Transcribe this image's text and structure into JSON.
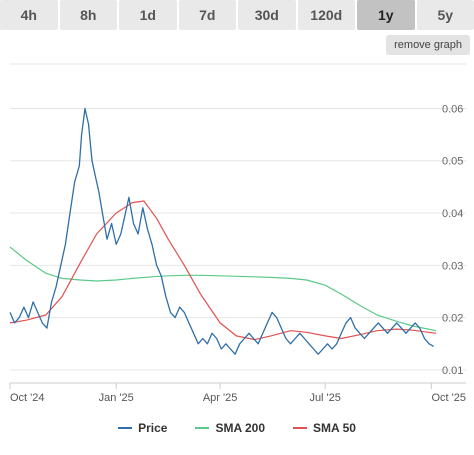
{
  "tabs": [
    {
      "label": "4h",
      "active": false
    },
    {
      "label": "8h",
      "active": false
    },
    {
      "label": "1d",
      "active": false
    },
    {
      "label": "7d",
      "active": false
    },
    {
      "label": "30d",
      "active": false
    },
    {
      "label": "120d",
      "active": false
    },
    {
      "label": "1y",
      "active": true
    },
    {
      "label": "5y",
      "active": false
    }
  ],
  "remove_graph_label": "remove graph",
  "chart_data": {
    "type": "line",
    "x_tick_labels": [
      "Oct '24",
      "Jan '25",
      "Apr '25",
      "Jul '25",
      "Oct '25"
    ],
    "y_tick_labels": [
      "0.01",
      "0.02",
      "0.03",
      "0.04",
      "0.05",
      "0.06"
    ],
    "y_ticks": [
      0.01,
      0.02,
      0.03,
      0.04,
      0.05,
      0.06
    ],
    "ylim": [
      0.0075,
      0.0685
    ],
    "xlim": [
      "2024-10-01",
      "2025-10-05"
    ],
    "grid": true,
    "legend_position": "bottom",
    "series": [
      {
        "name": "Price",
        "color": "#2f6fa7",
        "points": [
          [
            "2024-10-01",
            0.021
          ],
          [
            "2024-10-05",
            0.019
          ],
          [
            "2024-10-09",
            0.02
          ],
          [
            "2024-10-13",
            0.022
          ],
          [
            "2024-10-17",
            0.02
          ],
          [
            "2024-10-21",
            0.023
          ],
          [
            "2024-10-25",
            0.021
          ],
          [
            "2024-10-29",
            0.019
          ],
          [
            "2024-11-02",
            0.018
          ],
          [
            "2024-11-06",
            0.023
          ],
          [
            "2024-11-10",
            0.026
          ],
          [
            "2024-11-14",
            0.03
          ],
          [
            "2024-11-18",
            0.034
          ],
          [
            "2024-11-22",
            0.04
          ],
          [
            "2024-11-26",
            0.046
          ],
          [
            "2024-11-30",
            0.049
          ],
          [
            "2024-12-02",
            0.055
          ],
          [
            "2024-12-05",
            0.06
          ],
          [
            "2024-12-08",
            0.057
          ],
          [
            "2024-12-11",
            0.05
          ],
          [
            "2024-12-14",
            0.047
          ],
          [
            "2024-12-17",
            0.044
          ],
          [
            "2024-12-20",
            0.04
          ],
          [
            "2024-12-24",
            0.035
          ],
          [
            "2024-12-28",
            0.038
          ],
          [
            "2025-01-01",
            0.034
          ],
          [
            "2025-01-05",
            0.036
          ],
          [
            "2025-01-08",
            0.039
          ],
          [
            "2025-01-12",
            0.043
          ],
          [
            "2025-01-16",
            0.038
          ],
          [
            "2025-01-20",
            0.036
          ],
          [
            "2025-01-24",
            0.041
          ],
          [
            "2025-01-28",
            0.037
          ],
          [
            "2025-02-01",
            0.034
          ],
          [
            "2025-02-05",
            0.03
          ],
          [
            "2025-02-09",
            0.028
          ],
          [
            "2025-02-13",
            0.024
          ],
          [
            "2025-02-17",
            0.021
          ],
          [
            "2025-02-21",
            0.02
          ],
          [
            "2025-02-25",
            0.022
          ],
          [
            "2025-03-01",
            0.021
          ],
          [
            "2025-03-05",
            0.019
          ],
          [
            "2025-03-09",
            0.017
          ],
          [
            "2025-03-13",
            0.015
          ],
          [
            "2025-03-17",
            0.016
          ],
          [
            "2025-03-21",
            0.015
          ],
          [
            "2025-03-25",
            0.017
          ],
          [
            "2025-03-29",
            0.016
          ],
          [
            "2025-04-02",
            0.014
          ],
          [
            "2025-04-06",
            0.015
          ],
          [
            "2025-04-10",
            0.014
          ],
          [
            "2025-04-14",
            0.013
          ],
          [
            "2025-04-18",
            0.015
          ],
          [
            "2025-04-22",
            0.016
          ],
          [
            "2025-04-26",
            0.017
          ],
          [
            "2025-04-30",
            0.016
          ],
          [
            "2025-05-04",
            0.015
          ],
          [
            "2025-05-08",
            0.017
          ],
          [
            "2025-05-12",
            0.019
          ],
          [
            "2025-05-16",
            0.021
          ],
          [
            "2025-05-20",
            0.02
          ],
          [
            "2025-05-24",
            0.018
          ],
          [
            "2025-05-28",
            0.016
          ],
          [
            "2025-06-01",
            0.015
          ],
          [
            "2025-06-05",
            0.016
          ],
          [
            "2025-06-09",
            0.017
          ],
          [
            "2025-06-13",
            0.016
          ],
          [
            "2025-06-17",
            0.015
          ],
          [
            "2025-06-21",
            0.014
          ],
          [
            "2025-06-25",
            0.013
          ],
          [
            "2025-06-29",
            0.014
          ],
          [
            "2025-07-03",
            0.015
          ],
          [
            "2025-07-07",
            0.014
          ],
          [
            "2025-07-11",
            0.015
          ],
          [
            "2025-07-15",
            0.017
          ],
          [
            "2025-07-19",
            0.019
          ],
          [
            "2025-07-23",
            0.02
          ],
          [
            "2025-07-27",
            0.018
          ],
          [
            "2025-07-31",
            0.017
          ],
          [
            "2025-08-04",
            0.016
          ],
          [
            "2025-08-08",
            0.017
          ],
          [
            "2025-08-12",
            0.018
          ],
          [
            "2025-08-16",
            0.019
          ],
          [
            "2025-08-20",
            0.018
          ],
          [
            "2025-08-24",
            0.017
          ],
          [
            "2025-08-28",
            0.018
          ],
          [
            "2025-09-01",
            0.019
          ],
          [
            "2025-09-05",
            0.018
          ],
          [
            "2025-09-09",
            0.017
          ],
          [
            "2025-09-13",
            0.018
          ],
          [
            "2025-09-17",
            0.019
          ],
          [
            "2025-09-21",
            0.018
          ],
          [
            "2025-09-25",
            0.016
          ],
          [
            "2025-09-29",
            0.015
          ],
          [
            "2025-10-03",
            0.0145
          ]
        ]
      },
      {
        "name": "SMA 200",
        "color": "#5cc98a",
        "points": [
          [
            "2024-10-01",
            0.0335
          ],
          [
            "2024-10-15",
            0.031
          ],
          [
            "2024-11-01",
            0.0285
          ],
          [
            "2024-11-15",
            0.0275
          ],
          [
            "2024-12-01",
            0.0272
          ],
          [
            "2024-12-15",
            0.027
          ],
          [
            "2025-01-01",
            0.0272
          ],
          [
            "2025-01-15",
            0.0275
          ],
          [
            "2025-02-01",
            0.0278
          ],
          [
            "2025-02-15",
            0.028
          ],
          [
            "2025-03-01",
            0.0281
          ],
          [
            "2025-03-15",
            0.0281
          ],
          [
            "2025-04-01",
            0.028
          ],
          [
            "2025-04-15",
            0.0279
          ],
          [
            "2025-05-01",
            0.0278
          ],
          [
            "2025-05-15",
            0.0277
          ],
          [
            "2025-06-01",
            0.0275
          ],
          [
            "2025-06-15",
            0.0272
          ],
          [
            "2025-07-01",
            0.0262
          ],
          [
            "2025-07-15",
            0.0245
          ],
          [
            "2025-08-01",
            0.0222
          ],
          [
            "2025-08-15",
            0.0205
          ],
          [
            "2025-09-01",
            0.0193
          ],
          [
            "2025-09-15",
            0.0184
          ],
          [
            "2025-10-05",
            0.0175
          ]
        ]
      },
      {
        "name": "SMA 50",
        "color": "#e0524f",
        "points": [
          [
            "2024-10-01",
            0.019
          ],
          [
            "2024-10-15",
            0.0195
          ],
          [
            "2024-11-01",
            0.0205
          ],
          [
            "2024-11-15",
            0.024
          ],
          [
            "2024-12-01",
            0.0305
          ],
          [
            "2024-12-15",
            0.036
          ],
          [
            "2025-01-01",
            0.04
          ],
          [
            "2025-01-15",
            0.042
          ],
          [
            "2025-01-25",
            0.0423
          ],
          [
            "2025-02-05",
            0.039
          ],
          [
            "2025-02-15",
            0.035
          ],
          [
            "2025-03-01",
            0.03
          ],
          [
            "2025-03-15",
            0.0245
          ],
          [
            "2025-04-01",
            0.019
          ],
          [
            "2025-04-15",
            0.0165
          ],
          [
            "2025-05-01",
            0.0158
          ],
          [
            "2025-05-15",
            0.0165
          ],
          [
            "2025-06-01",
            0.0175
          ],
          [
            "2025-06-15",
            0.0172
          ],
          [
            "2025-07-01",
            0.0165
          ],
          [
            "2025-07-15",
            0.016
          ],
          [
            "2025-08-01",
            0.0168
          ],
          [
            "2025-08-15",
            0.0175
          ],
          [
            "2025-09-01",
            0.0178
          ],
          [
            "2025-09-15",
            0.0176
          ],
          [
            "2025-10-05",
            0.017
          ]
        ]
      }
    ]
  }
}
